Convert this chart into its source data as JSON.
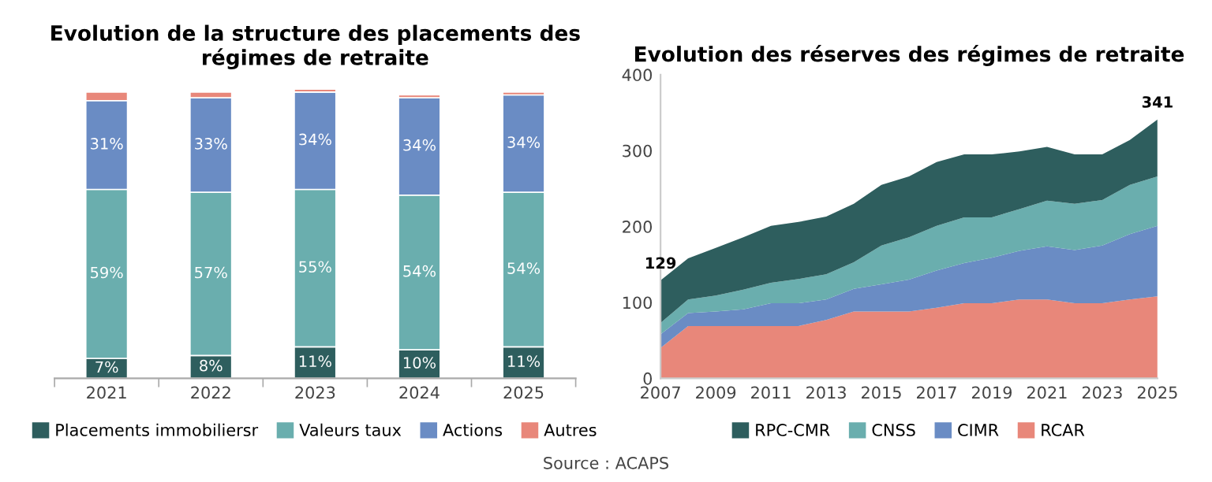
{
  "chart_data": [
    {
      "type": "bar",
      "title": "Evolution de la structure des placements des régimes de retraite",
      "categories": [
        "2021",
        "2022",
        "2023",
        "2024",
        "2025"
      ],
      "stacked": true,
      "tick_labels": "x",
      "legend": "bottom",
      "grid": false,
      "series": [
        {
          "name": "Placements immobiliersr",
          "color": "#2e5e5e",
          "values": [
            7,
            8,
            11,
            10,
            11
          ],
          "value_labels": [
            "7%",
            "8%",
            "11%",
            "10%",
            "11%"
          ]
        },
        {
          "name": "Valeurs taux",
          "color": "#6aaeae",
          "values": [
            59,
            57,
            55,
            54,
            54
          ],
          "value_labels": [
            "59%",
            "57%",
            "55%",
            "54%",
            "54%"
          ]
        },
        {
          "name": "Actions",
          "color": "#6a8cc4",
          "values": [
            31,
            33,
            34,
            34,
            34
          ],
          "value_labels": [
            "31%",
            "33%",
            "34%",
            "34%",
            "34%"
          ]
        },
        {
          "name": "Autres",
          "color": "#e8877a",
          "values": [
            3,
            2,
            1,
            1,
            1
          ],
          "value_labels": [
            null,
            null,
            null,
            null,
            null
          ]
        }
      ],
      "annotations": [
        "Source : ACAPS"
      ]
    },
    {
      "type": "area",
      "title": "Evolution des réserves des régimes de retraite",
      "stacked": true,
      "x": [
        2007,
        2008,
        2009,
        2010,
        2011,
        2012,
        2013,
        2014,
        2015,
        2016,
        2017,
        2018,
        2019,
        2020,
        2021,
        2022,
        2023,
        2024,
        2025
      ],
      "xlim": [
        2007,
        2025
      ],
      "xticks": [
        2007,
        2009,
        2011,
        2013,
        2015,
        2017,
        2019,
        2021,
        2023,
        2025
      ],
      "ylim": [
        0,
        400
      ],
      "yticks": [
        0,
        100,
        200,
        300,
        400
      ],
      "legend": "bottom",
      "grid": false,
      "series": [
        {
          "name": "RCAR",
          "color": "#e8877a",
          "values": [
            40,
            69,
            69,
            69,
            69,
            69,
            77,
            88,
            88,
            88,
            93,
            99,
            99,
            104,
            104,
            99,
            99,
            104,
            108
          ]
        },
        {
          "name": "CIMR",
          "color": "#6a8cc4",
          "values": [
            18,
            17,
            19,
            22,
            30,
            30,
            27,
            30,
            36,
            42,
            49,
            53,
            60,
            64,
            70,
            70,
            76,
            86,
            93
          ]
        },
        {
          "name": "CNSS",
          "color": "#6aaeae",
          "values": [
            15,
            18,
            21,
            26,
            27,
            32,
            33,
            35,
            51,
            56,
            59,
            60,
            53,
            55,
            60,
            61,
            60,
            65,
            65
          ]
        },
        {
          "name": "RPC-CMR",
          "color": "#2e5e5e",
          "values": [
            56,
            54,
            63,
            69,
            75,
            75,
            76,
            77,
            80,
            80,
            84,
            83,
            83,
            76,
            71,
            65,
            60,
            59,
            75
          ]
        }
      ],
      "annotations": [
        {
          "text": "129",
          "x": 2007,
          "y": 129
        },
        {
          "text": "341",
          "x": 2025,
          "y": 341
        }
      ]
    }
  ]
}
